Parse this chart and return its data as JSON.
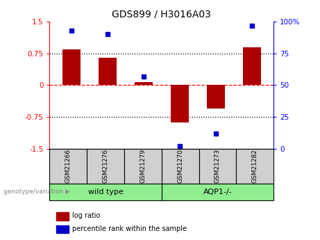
{
  "title": "GDS899 / H3016A03",
  "samples": [
    "GSM21266",
    "GSM21276",
    "GSM21279",
    "GSM21270",
    "GSM21273",
    "GSM21282"
  ],
  "log_ratios": [
    0.85,
    0.65,
    0.08,
    -0.88,
    -0.55,
    0.9
  ],
  "percentile_ranks": [
    93,
    90,
    57,
    2,
    12,
    97
  ],
  "group_defs": [
    {
      "label": "wild type",
      "start": 0,
      "end": 3,
      "color": "#90EE90"
    },
    {
      "label": "AQP1-/-",
      "start": 3,
      "end": 6,
      "color": "#90EE90"
    }
  ],
  "bar_color": "#AA0000",
  "dot_color": "#0000CC",
  "ylim_left": [
    -1.5,
    1.5
  ],
  "ylim_right": [
    0,
    100
  ],
  "yticks_left": [
    -1.5,
    -0.75,
    0,
    0.75,
    1.5
  ],
  "ytick_labels_left": [
    "-1.5",
    "-0.75",
    "0",
    "0.75",
    "1.5"
  ],
  "yticks_right": [
    0,
    25,
    50,
    75,
    100
  ],
  "ytick_labels_right": [
    "0",
    "25",
    "50",
    "75",
    "100%"
  ],
  "hlines": [
    {
      "val": -0.75,
      "style": "dotted",
      "color": "black"
    },
    {
      "val": 0,
      "style": "dashed",
      "color": "red"
    },
    {
      "val": 0.75,
      "style": "dotted",
      "color": "black"
    }
  ],
  "bar_width": 0.5,
  "genotype_label": "genotype/variation",
  "legend_items": [
    {
      "label": "log ratio",
      "color": "#AA0000"
    },
    {
      "label": "percentile rank within the sample",
      "color": "#0000CC"
    }
  ],
  "sample_box_color": "#D0D0D0",
  "spine_left_color": "red",
  "spine_right_color": "blue"
}
